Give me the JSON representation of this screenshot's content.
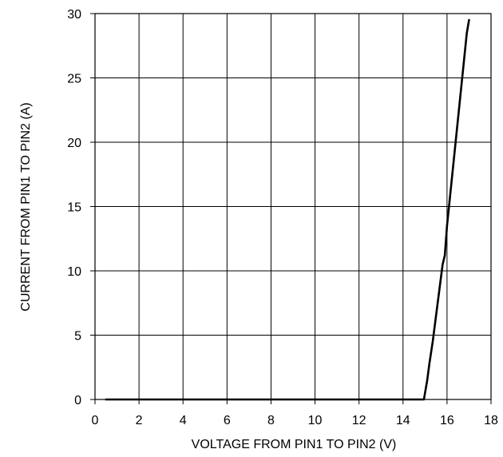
{
  "chart_data": {
    "type": "line",
    "title": "",
    "xlabel": "VOLTAGE FROM PIN1 TO PIN2 (V)",
    "ylabel": "CURRENT FROM PIN1 TO PIN2 (A)",
    "xlim": [
      0,
      18
    ],
    "ylim": [
      0,
      30
    ],
    "x_ticks": [
      0,
      2,
      4,
      6,
      8,
      10,
      12,
      14,
      16,
      18
    ],
    "y_ticks": [
      0,
      5,
      10,
      15,
      20,
      25,
      30
    ],
    "grid": true,
    "legend": "none",
    "series": [
      {
        "color": "#000000",
        "points": [
          [
            0.5,
            0.0
          ],
          [
            5.0,
            0.0
          ],
          [
            10.0,
            0.0
          ],
          [
            14.0,
            0.0
          ],
          [
            14.95,
            0.0
          ],
          [
            15.0,
            0.5
          ],
          [
            15.1,
            1.5
          ],
          [
            15.2,
            2.8
          ],
          [
            15.35,
            4.5
          ],
          [
            15.5,
            6.5
          ],
          [
            15.65,
            8.5
          ],
          [
            15.8,
            10.5
          ],
          [
            15.9,
            11.2
          ],
          [
            16.0,
            13.5
          ],
          [
            16.15,
            16.0
          ],
          [
            16.3,
            18.5
          ],
          [
            16.45,
            21.0
          ],
          [
            16.6,
            23.5
          ],
          [
            16.75,
            26.0
          ],
          [
            16.9,
            28.5
          ],
          [
            17.0,
            29.5
          ]
        ]
      }
    ]
  }
}
